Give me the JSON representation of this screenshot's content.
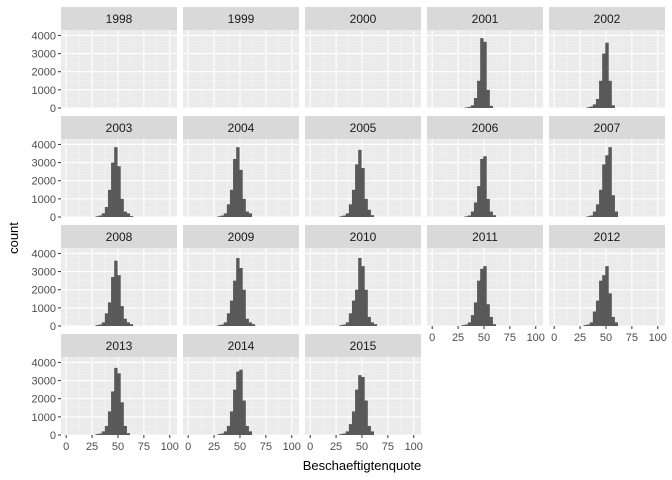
{
  "chart_data": {
    "type": "bar",
    "subtype": "faceted-histogram",
    "xlabel": "Beschaeftigtenquote",
    "ylabel": "count",
    "xlim": [
      -5,
      107
    ],
    "ylim": [
      0,
      4300
    ],
    "x_ticks": [
      0,
      25,
      50,
      75,
      100
    ],
    "y_ticks": [
      0,
      1000,
      2000,
      3000,
      4000
    ],
    "bin_width": 3.3,
    "grid": true,
    "colors": {
      "bar": "#595959",
      "panel": "#ebebeb",
      "strip": "#d9d9d9",
      "grid_major": "#ffffff",
      "grid_minor": "#f5f5f5"
    },
    "panels": [
      {
        "label": "1998",
        "bins": []
      },
      {
        "label": "1999",
        "bins": []
      },
      {
        "label": "2000",
        "bins": []
      },
      {
        "label": "2001",
        "bins": [
          [
            33,
            30
          ],
          [
            36,
            60
          ],
          [
            39,
            150
          ],
          [
            42,
            550
          ],
          [
            45,
            1500
          ],
          [
            48,
            3850
          ],
          [
            51,
            3650
          ],
          [
            54,
            1000
          ],
          [
            57,
            120
          ]
        ]
      },
      {
        "label": "2002",
        "bins": [
          [
            33,
            40
          ],
          [
            36,
            80
          ],
          [
            39,
            200
          ],
          [
            42,
            500
          ],
          [
            45,
            1500
          ],
          [
            48,
            3000
          ],
          [
            51,
            3600
          ],
          [
            54,
            1500
          ],
          [
            57,
            150
          ]
        ]
      },
      {
        "label": "2003",
        "bins": [
          [
            30,
            40
          ],
          [
            33,
            80
          ],
          [
            36,
            200
          ],
          [
            39,
            550
          ],
          [
            42,
            1500
          ],
          [
            45,
            3000
          ],
          [
            48,
            3850
          ],
          [
            51,
            2800
          ],
          [
            54,
            1000
          ],
          [
            57,
            300
          ],
          [
            60,
            200
          ],
          [
            63,
            50
          ]
        ]
      },
      {
        "label": "2004",
        "bins": [
          [
            30,
            40
          ],
          [
            33,
            80
          ],
          [
            36,
            200
          ],
          [
            39,
            700
          ],
          [
            42,
            1500
          ],
          [
            45,
            3200
          ],
          [
            48,
            3850
          ],
          [
            51,
            2600
          ],
          [
            54,
            1000
          ],
          [
            57,
            300
          ],
          [
            60,
            200
          ]
        ]
      },
      {
        "label": "2005",
        "bins": [
          [
            30,
            40
          ],
          [
            33,
            80
          ],
          [
            36,
            200
          ],
          [
            39,
            700
          ],
          [
            42,
            1500
          ],
          [
            45,
            2900
          ],
          [
            48,
            3700
          ],
          [
            51,
            2700
          ],
          [
            54,
            1000
          ],
          [
            57,
            400
          ],
          [
            60,
            100
          ]
        ]
      },
      {
        "label": "2006",
        "bins": [
          [
            33,
            40
          ],
          [
            36,
            80
          ],
          [
            39,
            300
          ],
          [
            42,
            800
          ],
          [
            45,
            1700
          ],
          [
            48,
            3200
          ],
          [
            51,
            3350
          ],
          [
            54,
            1000
          ],
          [
            57,
            300
          ],
          [
            60,
            100
          ]
        ]
      },
      {
        "label": "2007",
        "bins": [
          [
            33,
            40
          ],
          [
            36,
            80
          ],
          [
            39,
            300
          ],
          [
            42,
            700
          ],
          [
            45,
            1500
          ],
          [
            48,
            2900
          ],
          [
            51,
            3400
          ],
          [
            54,
            3850
          ],
          [
            57,
            1200
          ],
          [
            60,
            300
          ]
        ]
      },
      {
        "label": "2008",
        "bins": [
          [
            30,
            50
          ],
          [
            33,
            80
          ],
          [
            36,
            200
          ],
          [
            39,
            700
          ],
          [
            42,
            1300
          ],
          [
            45,
            2700
          ],
          [
            48,
            3600
          ],
          [
            51,
            2800
          ],
          [
            54,
            1100
          ],
          [
            57,
            400
          ],
          [
            60,
            200
          ],
          [
            63,
            100
          ]
        ]
      },
      {
        "label": "2009",
        "bins": [
          [
            30,
            50
          ],
          [
            33,
            80
          ],
          [
            36,
            200
          ],
          [
            39,
            700
          ],
          [
            42,
            1400
          ],
          [
            45,
            2500
          ],
          [
            48,
            3750
          ],
          [
            51,
            3200
          ],
          [
            54,
            2000
          ],
          [
            57,
            400
          ],
          [
            60,
            200
          ],
          [
            63,
            100
          ]
        ]
      },
      {
        "label": "2010",
        "bins": [
          [
            30,
            50
          ],
          [
            33,
            80
          ],
          [
            36,
            200
          ],
          [
            39,
            700
          ],
          [
            42,
            1400
          ],
          [
            45,
            2000
          ],
          [
            48,
            3750
          ],
          [
            51,
            3300
          ],
          [
            54,
            2000
          ],
          [
            57,
            500
          ],
          [
            60,
            200
          ],
          [
            63,
            100
          ]
        ]
      },
      {
        "label": "2011",
        "bins": [
          [
            30,
            50
          ],
          [
            33,
            80
          ],
          [
            36,
            200
          ],
          [
            39,
            600
          ],
          [
            42,
            1300
          ],
          [
            45,
            2500
          ],
          [
            48,
            3150
          ],
          [
            51,
            3300
          ],
          [
            54,
            1200
          ],
          [
            57,
            500
          ],
          [
            60,
            100
          ]
        ]
      },
      {
        "label": "2012",
        "bins": [
          [
            30,
            50
          ],
          [
            33,
            80
          ],
          [
            36,
            200
          ],
          [
            39,
            800
          ],
          [
            42,
            1400
          ],
          [
            45,
            2500
          ],
          [
            48,
            2800
          ],
          [
            51,
            3300
          ],
          [
            54,
            1800
          ],
          [
            57,
            500
          ],
          [
            60,
            200
          ]
        ]
      },
      {
        "label": "2013",
        "bins": [
          [
            30,
            50
          ],
          [
            33,
            80
          ],
          [
            36,
            200
          ],
          [
            39,
            500
          ],
          [
            42,
            1300
          ],
          [
            45,
            2400
          ],
          [
            48,
            3700
          ],
          [
            51,
            3400
          ],
          [
            54,
            1800
          ],
          [
            57,
            500
          ],
          [
            60,
            100
          ]
        ]
      },
      {
        "label": "2014",
        "bins": [
          [
            30,
            50
          ],
          [
            33,
            80
          ],
          [
            36,
            200
          ],
          [
            39,
            500
          ],
          [
            42,
            1300
          ],
          [
            45,
            2500
          ],
          [
            48,
            3500
          ],
          [
            51,
            3600
          ],
          [
            54,
            1900
          ],
          [
            57,
            500
          ],
          [
            60,
            200
          ]
        ]
      },
      {
        "label": "2015",
        "bins": [
          [
            30,
            50
          ],
          [
            33,
            80
          ],
          [
            36,
            200
          ],
          [
            39,
            600
          ],
          [
            42,
            1300
          ],
          [
            45,
            2500
          ],
          [
            48,
            3300
          ],
          [
            51,
            3200
          ],
          [
            54,
            1900
          ],
          [
            57,
            500
          ],
          [
            60,
            200
          ]
        ]
      }
    ]
  }
}
